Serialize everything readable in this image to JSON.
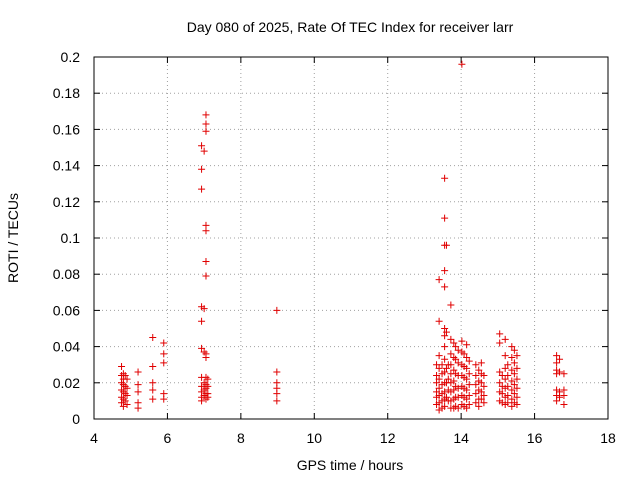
{
  "chart_data": {
    "type": "scatter",
    "title": "Day 080 of 2025, Rate Of TEC Index for receiver larr",
    "xlabel": "GPS time / hours",
    "ylabel": "ROTI / TECUs",
    "xlim": [
      4,
      18
    ],
    "ylim": [
      0,
      0.2
    ],
    "xticks": [
      4,
      6,
      8,
      10,
      12,
      14,
      16,
      18
    ],
    "yticks": [
      0,
      0.02,
      0.04,
      0.06,
      0.08,
      0.1,
      0.12,
      0.14,
      0.16,
      0.18,
      0.2
    ],
    "xtick_labels": [
      "4",
      "6",
      "8",
      "10",
      "12",
      "14",
      "16",
      "18"
    ],
    "ytick_labels": [
      "0",
      "0.02",
      "0.04",
      "0.06",
      "0.08",
      "0.1",
      "0.12",
      "0.14",
      "0.16",
      "0.18",
      "0.2"
    ],
    "grid": true,
    "marker": "plus",
    "marker_color": "#e00000",
    "series": [
      {
        "name": "ROTI",
        "points": [
          [
            4.75,
            0.029
          ],
          [
            4.75,
            0.024
          ],
          [
            4.75,
            0.02
          ],
          [
            4.75,
            0.016
          ],
          [
            4.75,
            0.012
          ],
          [
            4.75,
            0.009
          ],
          [
            4.8,
            0.025
          ],
          [
            4.8,
            0.022
          ],
          [
            4.8,
            0.019
          ],
          [
            4.8,
            0.015
          ],
          [
            4.8,
            0.011
          ],
          [
            4.8,
            0.007
          ],
          [
            4.85,
            0.024
          ],
          [
            4.85,
            0.018
          ],
          [
            4.85,
            0.014
          ],
          [
            4.85,
            0.01
          ],
          [
            4.9,
            0.022
          ],
          [
            4.9,
            0.017
          ],
          [
            4.9,
            0.013
          ],
          [
            4.9,
            0.008
          ],
          [
            5.2,
            0.026
          ],
          [
            5.2,
            0.019
          ],
          [
            5.2,
            0.015
          ],
          [
            5.2,
            0.009
          ],
          [
            5.2,
            0.006
          ],
          [
            5.6,
            0.045
          ],
          [
            5.6,
            0.029
          ],
          [
            5.6,
            0.02
          ],
          [
            5.6,
            0.016
          ],
          [
            5.6,
            0.011
          ],
          [
            5.9,
            0.042
          ],
          [
            5.9,
            0.036
          ],
          [
            5.9,
            0.031
          ],
          [
            5.9,
            0.014
          ],
          [
            5.9,
            0.011
          ],
          [
            6.93,
            0.151
          ],
          [
            6.93,
            0.138
          ],
          [
            6.93,
            0.127
          ],
          [
            6.93,
            0.062
          ],
          [
            6.93,
            0.054
          ],
          [
            6.93,
            0.039
          ],
          [
            6.93,
            0.023
          ],
          [
            6.93,
            0.018
          ],
          [
            6.93,
            0.015
          ],
          [
            6.93,
            0.012
          ],
          [
            6.93,
            0.01
          ],
          [
            7.0,
            0.148
          ],
          [
            7.0,
            0.061
          ],
          [
            7.0,
            0.037
          ],
          [
            7.0,
            0.02
          ],
          [
            7.0,
            0.016
          ],
          [
            7.0,
            0.013
          ],
          [
            7.05,
            0.168
          ],
          [
            7.05,
            0.163
          ],
          [
            7.05,
            0.159
          ],
          [
            7.05,
            0.107
          ],
          [
            7.05,
            0.104
          ],
          [
            7.05,
            0.087
          ],
          [
            7.05,
            0.079
          ],
          [
            7.05,
            0.036
          ],
          [
            7.05,
            0.034
          ],
          [
            7.05,
            0.023
          ],
          [
            7.05,
            0.019
          ],
          [
            7.05,
            0.017
          ],
          [
            7.05,
            0.014
          ],
          [
            7.05,
            0.011
          ],
          [
            7.1,
            0.022
          ],
          [
            7.1,
            0.018
          ],
          [
            7.1,
            0.014
          ],
          [
            7.1,
            0.012
          ],
          [
            8.98,
            0.06
          ],
          [
            8.98,
            0.026
          ],
          [
            8.98,
            0.02
          ],
          [
            8.98,
            0.017
          ],
          [
            8.98,
            0.014
          ],
          [
            8.98,
            0.01
          ],
          [
            13.33,
            0.03
          ],
          [
            13.33,
            0.024
          ],
          [
            13.33,
            0.02
          ],
          [
            13.33,
            0.015
          ],
          [
            13.33,
            0.012
          ],
          [
            13.33,
            0.008
          ],
          [
            13.4,
            0.077
          ],
          [
            13.4,
            0.054
          ],
          [
            13.4,
            0.035
          ],
          [
            13.4,
            0.028
          ],
          [
            13.4,
            0.022
          ],
          [
            13.4,
            0.017
          ],
          [
            13.4,
            0.013
          ],
          [
            13.4,
            0.009
          ],
          [
            13.4,
            0.005
          ],
          [
            13.48,
            0.03
          ],
          [
            13.48,
            0.025
          ],
          [
            13.48,
            0.019
          ],
          [
            13.48,
            0.014
          ],
          [
            13.48,
            0.01
          ],
          [
            13.48,
            0.006
          ],
          [
            13.55,
            0.133
          ],
          [
            13.55,
            0.111
          ],
          [
            13.55,
            0.096
          ],
          [
            13.55,
            0.082
          ],
          [
            13.55,
            0.073
          ],
          [
            13.55,
            0.05
          ],
          [
            13.55,
            0.046
          ],
          [
            13.55,
            0.04
          ],
          [
            13.55,
            0.033
          ],
          [
            13.55,
            0.026
          ],
          [
            13.55,
            0.02
          ],
          [
            13.55,
            0.015
          ],
          [
            13.55,
            0.011
          ],
          [
            13.55,
            0.007
          ],
          [
            13.6,
            0.096
          ],
          [
            13.6,
            0.048
          ],
          [
            13.6,
            0.028
          ],
          [
            13.6,
            0.02
          ],
          [
            13.6,
            0.012
          ],
          [
            13.65,
            0.03
          ],
          [
            13.65,
            0.022
          ],
          [
            13.65,
            0.016
          ],
          [
            13.65,
            0.01
          ],
          [
            13.72,
            0.063
          ],
          [
            13.72,
            0.044
          ],
          [
            13.72,
            0.036
          ],
          [
            13.72,
            0.03
          ],
          [
            13.72,
            0.025
          ],
          [
            13.72,
            0.02
          ],
          [
            13.72,
            0.015
          ],
          [
            13.72,
            0.01
          ],
          [
            13.72,
            0.006
          ],
          [
            13.8,
            0.042
          ],
          [
            13.8,
            0.034
          ],
          [
            13.8,
            0.027
          ],
          [
            13.8,
            0.021
          ],
          [
            13.8,
            0.016
          ],
          [
            13.8,
            0.011
          ],
          [
            13.8,
            0.006
          ],
          [
            13.85,
            0.04
          ],
          [
            13.85,
            0.033
          ],
          [
            13.85,
            0.025
          ],
          [
            13.85,
            0.018
          ],
          [
            13.85,
            0.012
          ],
          [
            13.85,
            0.007
          ],
          [
            13.92,
            0.038
          ],
          [
            13.92,
            0.031
          ],
          [
            13.92,
            0.024
          ],
          [
            13.92,
            0.017
          ],
          [
            13.92,
            0.012
          ],
          [
            13.92,
            0.006
          ],
          [
            14.02,
            0.196
          ],
          [
            14.02,
            0.043
          ],
          [
            14.02,
            0.037
          ],
          [
            14.02,
            0.03
          ],
          [
            14.02,
            0.024
          ],
          [
            14.02,
            0.018
          ],
          [
            14.02,
            0.013
          ],
          [
            14.02,
            0.008
          ],
          [
            14.08,
            0.036
          ],
          [
            14.08,
            0.029
          ],
          [
            14.08,
            0.023
          ],
          [
            14.08,
            0.017
          ],
          [
            14.08,
            0.012
          ],
          [
            14.08,
            0.007
          ],
          [
            14.15,
            0.041
          ],
          [
            14.15,
            0.034
          ],
          [
            14.15,
            0.028
          ],
          [
            14.15,
            0.022
          ],
          [
            14.15,
            0.016
          ],
          [
            14.15,
            0.011
          ],
          [
            14.15,
            0.006
          ],
          [
            14.22,
            0.032
          ],
          [
            14.22,
            0.025
          ],
          [
            14.22,
            0.019
          ],
          [
            14.22,
            0.013
          ],
          [
            14.22,
            0.008
          ],
          [
            14.4,
            0.03
          ],
          [
            14.4,
            0.024
          ],
          [
            14.4,
            0.019
          ],
          [
            14.4,
            0.014
          ],
          [
            14.4,
            0.009
          ],
          [
            14.48,
            0.027
          ],
          [
            14.48,
            0.021
          ],
          [
            14.48,
            0.016
          ],
          [
            14.48,
            0.011
          ],
          [
            14.48,
            0.007
          ],
          [
            14.55,
            0.031
          ],
          [
            14.55,
            0.025
          ],
          [
            14.55,
            0.02
          ],
          [
            14.55,
            0.015
          ],
          [
            14.55,
            0.011
          ],
          [
            14.62,
            0.024
          ],
          [
            14.62,
            0.018
          ],
          [
            14.62,
            0.013
          ],
          [
            14.62,
            0.009
          ],
          [
            15.05,
            0.047
          ],
          [
            15.05,
            0.042
          ],
          [
            15.05,
            0.026
          ],
          [
            15.05,
            0.02
          ],
          [
            15.05,
            0.015
          ],
          [
            15.05,
            0.01
          ],
          [
            15.12,
            0.024
          ],
          [
            15.12,
            0.018
          ],
          [
            15.12,
            0.014
          ],
          [
            15.12,
            0.009
          ],
          [
            15.2,
            0.044
          ],
          [
            15.2,
            0.035
          ],
          [
            15.2,
            0.028
          ],
          [
            15.2,
            0.022
          ],
          [
            15.2,
            0.017
          ],
          [
            15.2,
            0.012
          ],
          [
            15.2,
            0.008
          ],
          [
            15.27,
            0.03
          ],
          [
            15.27,
            0.024
          ],
          [
            15.27,
            0.018
          ],
          [
            15.27,
            0.013
          ],
          [
            15.27,
            0.009
          ],
          [
            15.38,
            0.04
          ],
          [
            15.38,
            0.034
          ],
          [
            15.38,
            0.027
          ],
          [
            15.38,
            0.021
          ],
          [
            15.38,
            0.016
          ],
          [
            15.38,
            0.011
          ],
          [
            15.38,
            0.007
          ],
          [
            15.45,
            0.038
          ],
          [
            15.45,
            0.031
          ],
          [
            15.45,
            0.025
          ],
          [
            15.45,
            0.019
          ],
          [
            15.45,
            0.014
          ],
          [
            15.45,
            0.009
          ],
          [
            15.52,
            0.035
          ],
          [
            15.52,
            0.028
          ],
          [
            15.52,
            0.022
          ],
          [
            15.52,
            0.017
          ],
          [
            15.52,
            0.012
          ],
          [
            15.52,
            0.008
          ],
          [
            16.6,
            0.035
          ],
          [
            16.6,
            0.031
          ],
          [
            16.6,
            0.027
          ],
          [
            16.6,
            0.025
          ],
          [
            16.6,
            0.016
          ],
          [
            16.6,
            0.013
          ],
          [
            16.6,
            0.01
          ],
          [
            16.68,
            0.033
          ],
          [
            16.68,
            0.026
          ],
          [
            16.68,
            0.015
          ],
          [
            16.68,
            0.012
          ],
          [
            16.8,
            0.025
          ],
          [
            16.8,
            0.016
          ],
          [
            16.8,
            0.013
          ],
          [
            16.8,
            0.008
          ]
        ]
      }
    ]
  }
}
